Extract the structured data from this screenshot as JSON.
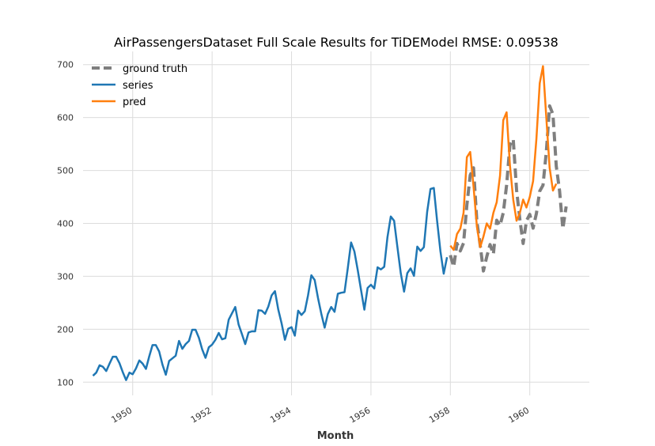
{
  "chart_data": {
    "type": "line",
    "title": "AirPassengersDataset Full Scale Results for TiDEModel RMSE: 0.09538",
    "xlabel": "Month",
    "ylabel": "",
    "xlim": [
      1948.75,
      1961.5
    ],
    "ylim": [
      75,
      725
    ],
    "x_ticks": [
      1950,
      1952,
      1954,
      1956,
      1958,
      1960
    ],
    "x_tick_labels": [
      "1950",
      "1952",
      "1954",
      "1956",
      "1958",
      "1960"
    ],
    "y_ticks": [
      100,
      200,
      300,
      400,
      500,
      600,
      700
    ],
    "y_tick_labels": [
      "100",
      "200",
      "300",
      "400",
      "500",
      "600",
      "700"
    ],
    "grid": true,
    "legend_position": "top-left",
    "series": [
      {
        "name": "ground truth",
        "color": "#7f7f7f",
        "style": "dashed",
        "start": [
          1958,
          1
        ],
        "values": [
          340,
          318,
          362,
          348,
          363,
          435,
          491,
          505,
          404,
          359,
          310,
          337,
          360,
          342,
          406,
          396,
          420,
          472,
          548,
          559,
          463,
          407,
          362,
          405,
          417,
          391,
          419,
          461,
          472,
          535,
          622,
          606,
          508,
          461,
          390,
          432
        ]
      },
      {
        "name": "series",
        "color": "#1f77b4",
        "style": "solid",
        "start": [
          1949,
          1
        ],
        "values": [
          112,
          118,
          132,
          129,
          121,
          135,
          148,
          148,
          136,
          119,
          104,
          118,
          115,
          126,
          141,
          135,
          125,
          149,
          170,
          170,
          158,
          133,
          114,
          140,
          145,
          150,
          178,
          163,
          172,
          178,
          199,
          199,
          184,
          162,
          146,
          166,
          171,
          180,
          193,
          181,
          183,
          218,
          230,
          242,
          209,
          191,
          172,
          194,
          196,
          196,
          236,
          235,
          229,
          243,
          264,
          272,
          237,
          211,
          180,
          201,
          204,
          188,
          235,
          227,
          234,
          264,
          302,
          293,
          259,
          229,
          203,
          229,
          242,
          233,
          267,
          269,
          270,
          315,
          364,
          347,
          312,
          274,
          237,
          278,
          284,
          277,
          317,
          313,
          318,
          374,
          413,
          405,
          355,
          306,
          271,
          306,
          315,
          301,
          356,
          348,
          355,
          422,
          465,
          467,
          404,
          347,
          305,
          336
        ]
      },
      {
        "name": "pred",
        "color": "#ff7f0e",
        "style": "solid",
        "start": [
          1958,
          1
        ],
        "values": [
          358,
          350,
          380,
          390,
          420,
          525,
          535,
          470,
          395,
          355,
          375,
          400,
          390,
          420,
          440,
          490,
          595,
          610,
          510,
          445,
          405,
          420,
          445,
          430,
          450,
          480,
          560,
          665,
          697,
          600,
          505,
          462,
          475
        ]
      }
    ]
  }
}
